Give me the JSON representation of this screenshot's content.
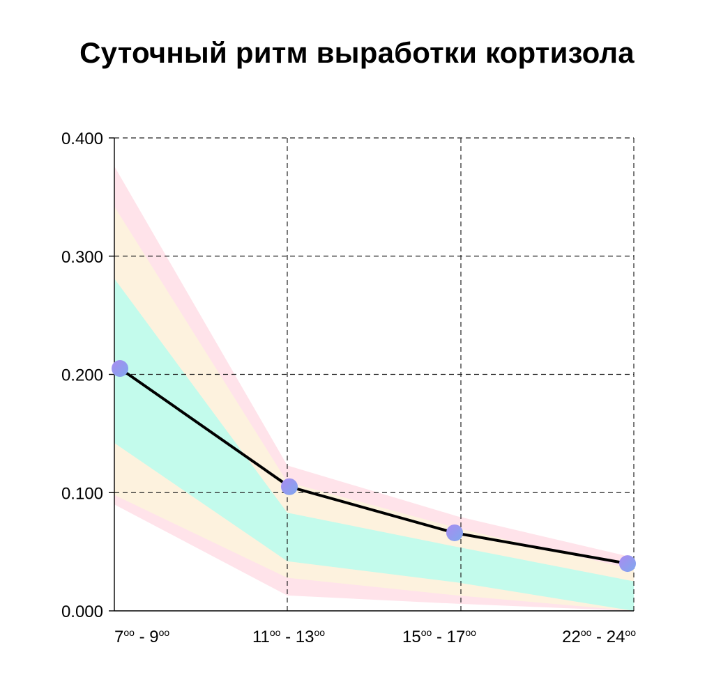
{
  "chart_data": {
    "type": "line",
    "title": "Суточный ритм выработки кортизола",
    "xlabel": "",
    "ylabel": "",
    "categories": [
      {
        "main": "7",
        "sup": "оо",
        "sep": " - ",
        "main2": "9",
        "sup2": "оо"
      },
      {
        "main": "11",
        "sup": "оо",
        "sep": " - ",
        "main2": "13",
        "sup2": "оо"
      },
      {
        "main": "15",
        "sup": "оо",
        "sep": " - ",
        "main2": "17",
        "sup2": "оо"
      },
      {
        "main": "22",
        "sup": "оо",
        "sep": " - ",
        "main2": "24",
        "sup2": "оо"
      }
    ],
    "yticks": [
      "0.000",
      "0.100",
      "0.200",
      "0.300",
      "0.400"
    ],
    "ylim": [
      0,
      0.4
    ],
    "grid": true,
    "series": [
      {
        "values": [
          0.205,
          0.105,
          0.066,
          0.04
        ]
      }
    ],
    "bands": [
      {
        "color": "#ffe3ea",
        "lower": [
          0.09,
          0.013,
          0.006,
          0.0
        ],
        "upper": [
          0.376,
          0.123,
          0.08,
          0.045
        ]
      },
      {
        "color": "#fdf2de",
        "lower": [
          0.098,
          0.028,
          0.013,
          0.0
        ],
        "upper": [
          0.342,
          0.109,
          0.07,
          0.035
        ]
      },
      {
        "color": "#c3fbec",
        "lower": [
          0.142,
          0.042,
          0.024,
          0.0
        ],
        "upper": [
          0.281,
          0.083,
          0.054,
          0.025
        ]
      }
    ],
    "colors": {
      "line": "#000000",
      "marker_from": "#a98bf0",
      "marker_to": "#7fa8ee",
      "grid": "#222222"
    }
  }
}
